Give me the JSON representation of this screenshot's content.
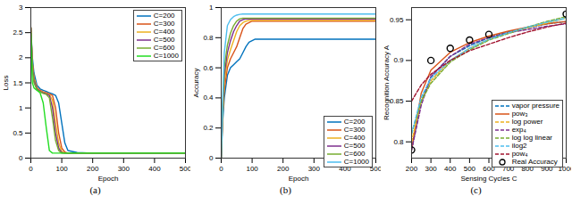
{
  "chart_data": [
    {
      "type": "line",
      "caption": "(a)",
      "x_label": "Epoch",
      "y_label": "Loss",
      "xlim": [
        0,
        500
      ],
      "xticks": [
        0,
        100,
        200,
        300,
        400,
        500
      ],
      "ylim": [
        0,
        3
      ],
      "yticks": [
        0,
        0.5,
        1,
        1.5,
        2,
        2.5,
        3
      ],
      "grid": false,
      "legend": "top-right",
      "x": [
        0,
        5,
        10,
        20,
        30,
        40,
        50,
        60,
        70,
        80,
        90,
        100,
        110,
        120,
        150,
        200,
        300,
        400,
        500
      ],
      "series": [
        {
          "name": "C=200",
          "color": "#0072BD",
          "line_style": "solid",
          "values": [
            2.6,
            2.0,
            1.7,
            1.45,
            1.38,
            1.35,
            1.33,
            1.3,
            1.28,
            1.25,
            1.1,
            0.7,
            0.3,
            0.15,
            0.11,
            0.1,
            0.1,
            0.1,
            0.1
          ]
        },
        {
          "name": "C=300",
          "color": "#D95319",
          "line_style": "solid",
          "values": [
            2.6,
            1.9,
            1.6,
            1.4,
            1.35,
            1.32,
            1.3,
            1.28,
            1.25,
            1.0,
            0.5,
            0.2,
            0.12,
            0.1,
            0.1,
            0.1,
            0.1,
            0.1,
            0.1
          ]
        },
        {
          "name": "C=400",
          "color": "#EDB120",
          "line_style": "solid",
          "values": [
            2.6,
            1.9,
            1.6,
            1.4,
            1.34,
            1.31,
            1.29,
            1.27,
            1.15,
            0.7,
            0.3,
            0.13,
            0.1,
            0.1,
            0.1,
            0.1,
            0.1,
            0.1,
            0.1
          ]
        },
        {
          "name": "C=500",
          "color": "#7E2F8E",
          "line_style": "solid",
          "values": [
            2.6,
            1.85,
            1.55,
            1.38,
            1.33,
            1.3,
            1.28,
            1.25,
            1.0,
            0.5,
            0.2,
            0.11,
            0.1,
            0.1,
            0.1,
            0.1,
            0.1,
            0.1,
            0.1
          ]
        },
        {
          "name": "C=600",
          "color": "#77AC30",
          "line_style": "solid",
          "values": [
            2.6,
            1.8,
            1.5,
            1.36,
            1.32,
            1.29,
            1.27,
            1.2,
            0.8,
            0.35,
            0.15,
            0.1,
            0.1,
            0.1,
            0.1,
            0.1,
            0.1,
            0.1,
            0.1
          ]
        },
        {
          "name": "C=1000",
          "color": "#22DD22",
          "line_style": "solid",
          "values": [
            2.5,
            1.5,
            1.4,
            1.35,
            1.3,
            1.1,
            0.6,
            0.15,
            0.1,
            0.1,
            0.1,
            0.1,
            0.1,
            0.1,
            0.1,
            0.1,
            0.1,
            0.1,
            0.1
          ]
        }
      ]
    },
    {
      "type": "line",
      "caption": "(b)",
      "x_label": "Epoch",
      "y_label": "Accuracy",
      "xlim": [
        0,
        500
      ],
      "xticks": [
        0,
        100,
        200,
        300,
        400,
        500
      ],
      "ylim": [
        0,
        1
      ],
      "yticks": [
        0,
        0.2,
        0.4,
        0.6,
        0.8,
        1
      ],
      "grid": false,
      "legend": "bottom-right",
      "x": [
        0,
        5,
        10,
        20,
        30,
        40,
        50,
        60,
        70,
        80,
        90,
        100,
        110,
        120,
        150,
        200,
        300,
        400,
        500
      ],
      "series": [
        {
          "name": "C=200",
          "color": "#0072BD",
          "line_style": "solid",
          "values": [
            0,
            0.25,
            0.4,
            0.55,
            0.6,
            0.62,
            0.64,
            0.66,
            0.7,
            0.74,
            0.77,
            0.78,
            0.79,
            0.79,
            0.79,
            0.79,
            0.79,
            0.79,
            0.79
          ]
        },
        {
          "name": "C=300",
          "color": "#D95319",
          "line_style": "solid",
          "values": [
            0,
            0.3,
            0.45,
            0.6,
            0.66,
            0.7,
            0.74,
            0.8,
            0.86,
            0.89,
            0.9,
            0.91,
            0.91,
            0.91,
            0.91,
            0.91,
            0.91,
            0.91,
            0.91
          ]
        },
        {
          "name": "C=400",
          "color": "#EDB120",
          "line_style": "solid",
          "values": [
            0,
            0.3,
            0.5,
            0.65,
            0.72,
            0.78,
            0.84,
            0.88,
            0.9,
            0.91,
            0.915,
            0.915,
            0.915,
            0.915,
            0.915,
            0.915,
            0.915,
            0.915,
            0.915
          ]
        },
        {
          "name": "C=500",
          "color": "#7E2F8E",
          "line_style": "solid",
          "values": [
            0,
            0.35,
            0.55,
            0.7,
            0.78,
            0.84,
            0.88,
            0.91,
            0.92,
            0.925,
            0.925,
            0.925,
            0.925,
            0.925,
            0.925,
            0.925,
            0.925,
            0.925,
            0.925
          ]
        },
        {
          "name": "C=600",
          "color": "#77AC30",
          "line_style": "solid",
          "values": [
            0,
            0.35,
            0.6,
            0.75,
            0.83,
            0.88,
            0.91,
            0.925,
            0.93,
            0.93,
            0.93,
            0.93,
            0.93,
            0.93,
            0.93,
            0.93,
            0.93,
            0.93,
            0.93
          ]
        },
        {
          "name": "C=1000",
          "color": "#4DBEEE",
          "line_style": "solid",
          "values": [
            0,
            0.4,
            0.7,
            0.88,
            0.92,
            0.94,
            0.95,
            0.955,
            0.957,
            0.957,
            0.957,
            0.957,
            0.957,
            0.957,
            0.957,
            0.957,
            0.957,
            0.957,
            0.957
          ]
        }
      ]
    },
    {
      "type": "line",
      "caption": "(c)",
      "x_label": "Sensing Cycles C",
      "y_label": "Recognition Accuracy A",
      "xlim": [
        200,
        1000
      ],
      "xticks": [
        200,
        300,
        400,
        500,
        600,
        700,
        800,
        900,
        1000
      ],
      "ylim": [
        0.78,
        0.965
      ],
      "yticks": [
        0.8,
        0.85,
        0.9,
        0.95
      ],
      "grid": false,
      "legend": "bottom-right",
      "x": [
        200,
        250,
        300,
        400,
        500,
        600,
        700,
        800,
        900,
        1000
      ],
      "series": [
        {
          "name": "vapor pressure",
          "color": "#0072BD",
          "line_style": "dashed",
          "values": [
            0.79,
            0.85,
            0.88,
            0.905,
            0.918,
            0.928,
            0.935,
            0.94,
            0.945,
            0.948
          ]
        },
        {
          "name": "pow₃",
          "color": "#D95319",
          "line_style": "solid",
          "values": [
            0.79,
            0.86,
            0.888,
            0.91,
            0.922,
            0.93,
            0.936,
            0.941,
            0.945,
            0.948
          ]
        },
        {
          "name": "log power",
          "color": "#EDB120",
          "line_style": "dashed",
          "values": [
            0.8,
            0.85,
            0.875,
            0.9,
            0.915,
            0.926,
            0.934,
            0.94,
            0.946,
            0.952
          ]
        },
        {
          "name": "exp₄",
          "color": "#7E2F8E",
          "line_style": "dashed",
          "values": [
            0.79,
            0.845,
            0.88,
            0.905,
            0.92,
            0.928,
            0.934,
            0.938,
            0.942,
            0.945
          ]
        },
        {
          "name": "log log linear",
          "color": "#77AC30",
          "line_style": "dashed",
          "values": [
            0.81,
            0.85,
            0.872,
            0.898,
            0.913,
            0.925,
            0.933,
            0.941,
            0.948,
            0.954
          ]
        },
        {
          "name": "ilog2",
          "color": "#4DBEEE",
          "line_style": "dashed",
          "values": [
            0.81,
            0.855,
            0.878,
            0.9,
            0.915,
            0.926,
            0.934,
            0.941,
            0.947,
            0.952
          ]
        },
        {
          "name": "pow₄",
          "color": "#A2142F",
          "line_style": "dashed",
          "values": [
            0.85,
            0.87,
            0.883,
            0.9,
            0.912,
            0.92,
            0.928,
            0.935,
            0.941,
            0.946
          ]
        },
        {
          "name": "Real Accuracy",
          "color": "#000000",
          "type": "scatter",
          "marker": "circle",
          "x": [
            200,
            300,
            400,
            500,
            600,
            1000
          ],
          "values": [
            0.79,
            0.9,
            0.915,
            0.925,
            0.932,
            0.957
          ]
        }
      ]
    }
  ]
}
